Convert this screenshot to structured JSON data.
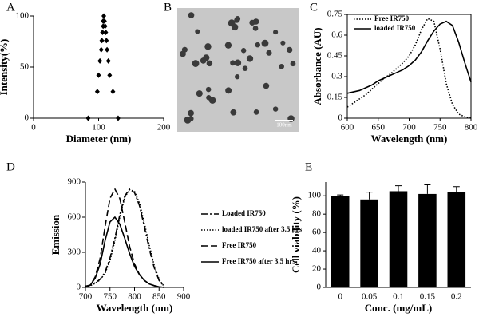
{
  "chart_data": [
    {
      "type": "scatter",
      "label": "A",
      "xlabel": "Diameter (nm)",
      "ylabel": "Intensity(%)",
      "x": [
        84,
        130,
        98,
        122,
        100,
        117,
        102,
        115,
        104,
        113,
        105,
        112,
        106,
        111,
        107,
        110,
        107,
        109,
        108
      ],
      "y": [
        0,
        0,
        26,
        26,
        42,
        42,
        56,
        56,
        67,
        67,
        76,
        76,
        84,
        84,
        90,
        90,
        95,
        95,
        100
      ],
      "color": "#000000",
      "xlim": [
        0,
        200
      ],
      "xticks": [
        0,
        100,
        200
      ],
      "ylim": [
        0,
        100
      ],
      "yticks": [
        0,
        50,
        100
      ]
    },
    {
      "type": "image",
      "label": "B",
      "scale_label": "100nm"
    },
    {
      "type": "line",
      "label": "C",
      "xlabel": "Wavelength (nm)",
      "ylabel": "Absorbance (AU)",
      "frame": true,
      "legend": "upper left",
      "x": [
        600,
        610,
        620,
        630,
        640,
        650,
        660,
        670,
        680,
        690,
        700,
        710,
        720,
        730,
        740,
        750,
        760,
        770,
        780,
        790,
        800
      ],
      "series": [
        {
          "name": "Free IR750",
          "color": "#000000",
          "style": "dotted",
          "values": [
            0.08,
            0.11,
            0.14,
            0.17,
            0.21,
            0.25,
            0.29,
            0.32,
            0.36,
            0.4,
            0.45,
            0.53,
            0.64,
            0.72,
            0.7,
            0.5,
            0.25,
            0.1,
            0.03,
            0.01,
            0
          ]
        },
        {
          "name": "loaded IR750",
          "color": "#000000",
          "style": "solid",
          "values": [
            0.18,
            0.19,
            0.2,
            0.22,
            0.24,
            0.27,
            0.29,
            0.31,
            0.33,
            0.35,
            0.38,
            0.42,
            0.48,
            0.56,
            0.63,
            0.68,
            0.7,
            0.67,
            0.55,
            0.4,
            0.26
          ]
        }
      ],
      "xlim": [
        600,
        800
      ],
      "xticks": [
        600,
        650,
        700,
        750,
        800
      ],
      "ylim": [
        0,
        0.75
      ],
      "yticks": [
        0,
        0.15,
        0.3,
        0.45,
        0.6,
        0.75
      ]
    },
    {
      "type": "line",
      "label": "D",
      "xlabel": "Wavelength (nm)",
      "ylabel": "Emission",
      "legend": "right",
      "x": [
        700,
        710,
        720,
        730,
        740,
        750,
        760,
        770,
        780,
        790,
        800,
        810,
        820,
        830,
        840,
        850,
        860
      ],
      "series": [
        {
          "name": "Loaded IR750",
          "color": "#000000",
          "style": "dashdot",
          "values": [
            10,
            20,
            40,
            70,
            130,
            250,
            420,
            620,
            780,
            840,
            810,
            700,
            520,
            330,
            170,
            60,
            10
          ]
        },
        {
          "name": "loaded IR750 after 3.5 hrs",
          "color": "#000000",
          "style": "dotted",
          "values": [
            10,
            15,
            35,
            65,
            120,
            230,
            400,
            600,
            770,
            835,
            820,
            720,
            550,
            360,
            190,
            70,
            10
          ]
        },
        {
          "name": "Free IR750",
          "color": "#000000",
          "style": "dashed",
          "values": [
            0,
            20,
            90,
            250,
            520,
            760,
            840,
            760,
            560,
            350,
            200,
            110,
            60,
            30,
            15,
            5,
            0
          ]
        },
        {
          "name": "Free IR750 after 3.5 hrs",
          "color": "#000000",
          "style": "solid",
          "values": [
            0,
            20,
            80,
            200,
            400,
            560,
            600,
            540,
            420,
            290,
            180,
            110,
            60,
            30,
            15,
            5,
            0
          ]
        }
      ],
      "xlim": [
        700,
        900
      ],
      "xticks": [
        700,
        750,
        800,
        850,
        900
      ],
      "ylim": [
        0,
        900
      ],
      "yticks": [
        0,
        300,
        600,
        900
      ]
    },
    {
      "type": "bar",
      "label": "E",
      "xlabel": "Conc. (mg/mL)",
      "ylabel": "Cell viability (%)",
      "categories": [
        "0",
        "0.05",
        "0.1",
        "0.15",
        "0.2"
      ],
      "values": [
        100,
        96,
        105,
        102,
        104
      ],
      "errors": [
        1,
        8,
        6,
        10,
        6
      ],
      "color": "#000000",
      "ylim": [
        0,
        115
      ],
      "yticks": [
        0,
        20,
        40,
        60,
        80,
        100
      ]
    }
  ]
}
